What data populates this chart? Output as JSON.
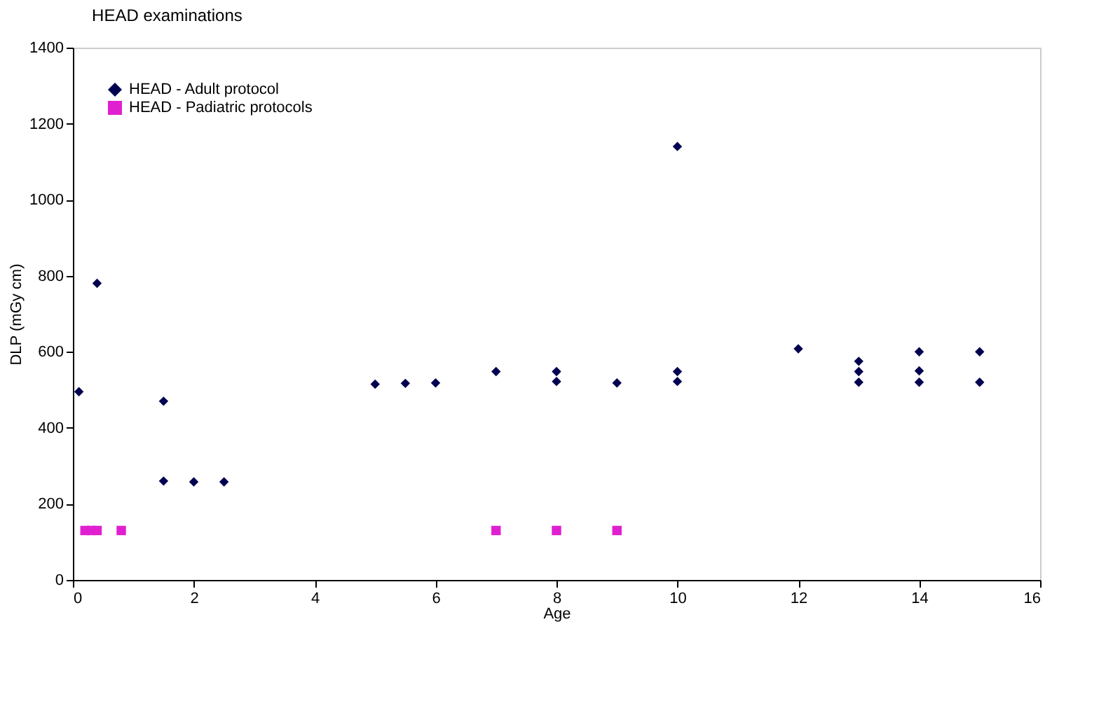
{
  "chart_data": {
    "type": "scatter",
    "title": "HEAD examinations",
    "xlabel": "Age",
    "ylabel": "DLP (mGy cm)",
    "xlim": [
      0,
      16
    ],
    "xticks": [
      0,
      2,
      4,
      6,
      8,
      10,
      12,
      14,
      16
    ],
    "ylim": [
      0,
      1400
    ],
    "yticks": [
      0,
      200,
      400,
      600,
      800,
      1000,
      1200,
      1400
    ],
    "grid": false,
    "legend": "top left",
    "series": [
      {
        "name": "HEAD - Adult protocol",
        "color": "#000050",
        "marker": "diamond",
        "x": [
          0.1,
          0.4,
          1.5,
          1.5,
          2,
          2.5,
          5,
          5.5,
          6,
          7,
          8,
          8,
          9,
          10,
          10,
          10,
          12,
          13,
          13,
          13,
          14,
          14,
          14,
          15,
          15
        ],
        "values": [
          495,
          780,
          470,
          260,
          258,
          258,
          515,
          517,
          518,
          548,
          548,
          522,
          518,
          1140,
          548,
          522,
          608,
          575,
          548,
          520,
          600,
          550,
          520,
          600,
          520
        ]
      },
      {
        "name": "HEAD - Padiatric protocols",
        "color": "#e020d0",
        "marker": "square",
        "x": [
          0.2,
          0.3,
          0.4,
          0.8,
          7,
          8,
          9
        ],
        "values": [
          130,
          130,
          130,
          130,
          130,
          130,
          130
        ]
      }
    ]
  }
}
